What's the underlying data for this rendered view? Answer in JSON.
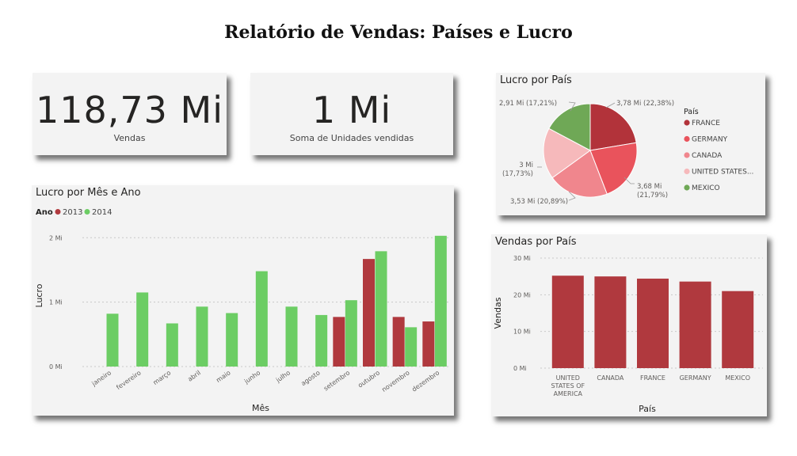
{
  "page_title": "Relatório de Vendas: Países e Lucro",
  "kpis": [
    {
      "value": "118,73 Mi",
      "label": "Vendas"
    },
    {
      "value": "1 Mi",
      "label": "Soma de Unidades vendidas"
    }
  ],
  "colors": {
    "year_2013": "#b0393e",
    "year_2014": "#6ccd64",
    "bar_sales": "#b0393e",
    "pie": [
      "#b2333a",
      "#e9535c",
      "#f0868d",
      "#f6b9bb",
      "#6fa856"
    ]
  },
  "chart_data": [
    {
      "type": "bar",
      "title": "Lucro por Mês e Ano",
      "xlabel": "Mês",
      "ylabel": "Lucro",
      "legend_title": "Ano",
      "legend_position": "top-left",
      "categories": [
        "janeiro",
        "fevereiro",
        "março",
        "abril",
        "maio",
        "junho",
        "julho",
        "agosto",
        "setembro",
        "outubro",
        "novembro",
        "dezembro"
      ],
      "series": [
        {
          "name": "2013",
          "values": [
            null,
            null,
            null,
            null,
            null,
            null,
            null,
            null,
            0.77,
            1.67,
            0.77,
            0.7
          ]
        },
        {
          "name": "2014",
          "values": [
            0.82,
            1.15,
            0.67,
            0.93,
            0.83,
            1.48,
            0.93,
            0.8,
            1.03,
            1.79,
            0.61,
            2.03
          ]
        }
      ],
      "yticks": [
        "0 Mi",
        "1 Mi",
        "2 Mi"
      ],
      "ylim": [
        0,
        2.2
      ],
      "grid": true
    },
    {
      "type": "pie",
      "title": "Lucro por País",
      "legend_title": "País",
      "legend_position": "right",
      "slices": [
        {
          "label": "FRANCE",
          "value": 3.78,
          "data_label": "3,78 Mi (22,38%)"
        },
        {
          "label": "GERMANY",
          "value": 3.68,
          "data_label": "3,68 Mi (21,79%)"
        },
        {
          "label": "CANADA",
          "value": 3.53,
          "data_label": "3,53 Mi (20,89%)"
        },
        {
          "label": "UNITED STATES...",
          "value": 3.0,
          "data_label": "3 Mi (17,73%)"
        },
        {
          "label": "MEXICO",
          "value": 2.91,
          "data_label": "2,91 Mi (17,21%)"
        }
      ]
    },
    {
      "type": "bar",
      "title": "Vendas por País",
      "xlabel": "País",
      "ylabel": "Vendas",
      "categories": [
        [
          "UNITED",
          "STATES OF",
          "AMERICA"
        ],
        [
          "CANADA"
        ],
        [
          "FRANCE"
        ],
        [
          "GERMANY"
        ],
        [
          "MEXICO"
        ]
      ],
      "values": [
        25.2,
        25.0,
        24.4,
        23.6,
        21.0
      ],
      "yticks": [
        "0 Mi",
        "10 Mi",
        "20 Mi",
        "30 Mi"
      ],
      "ylim": [
        0,
        30
      ],
      "grid": true
    }
  ]
}
